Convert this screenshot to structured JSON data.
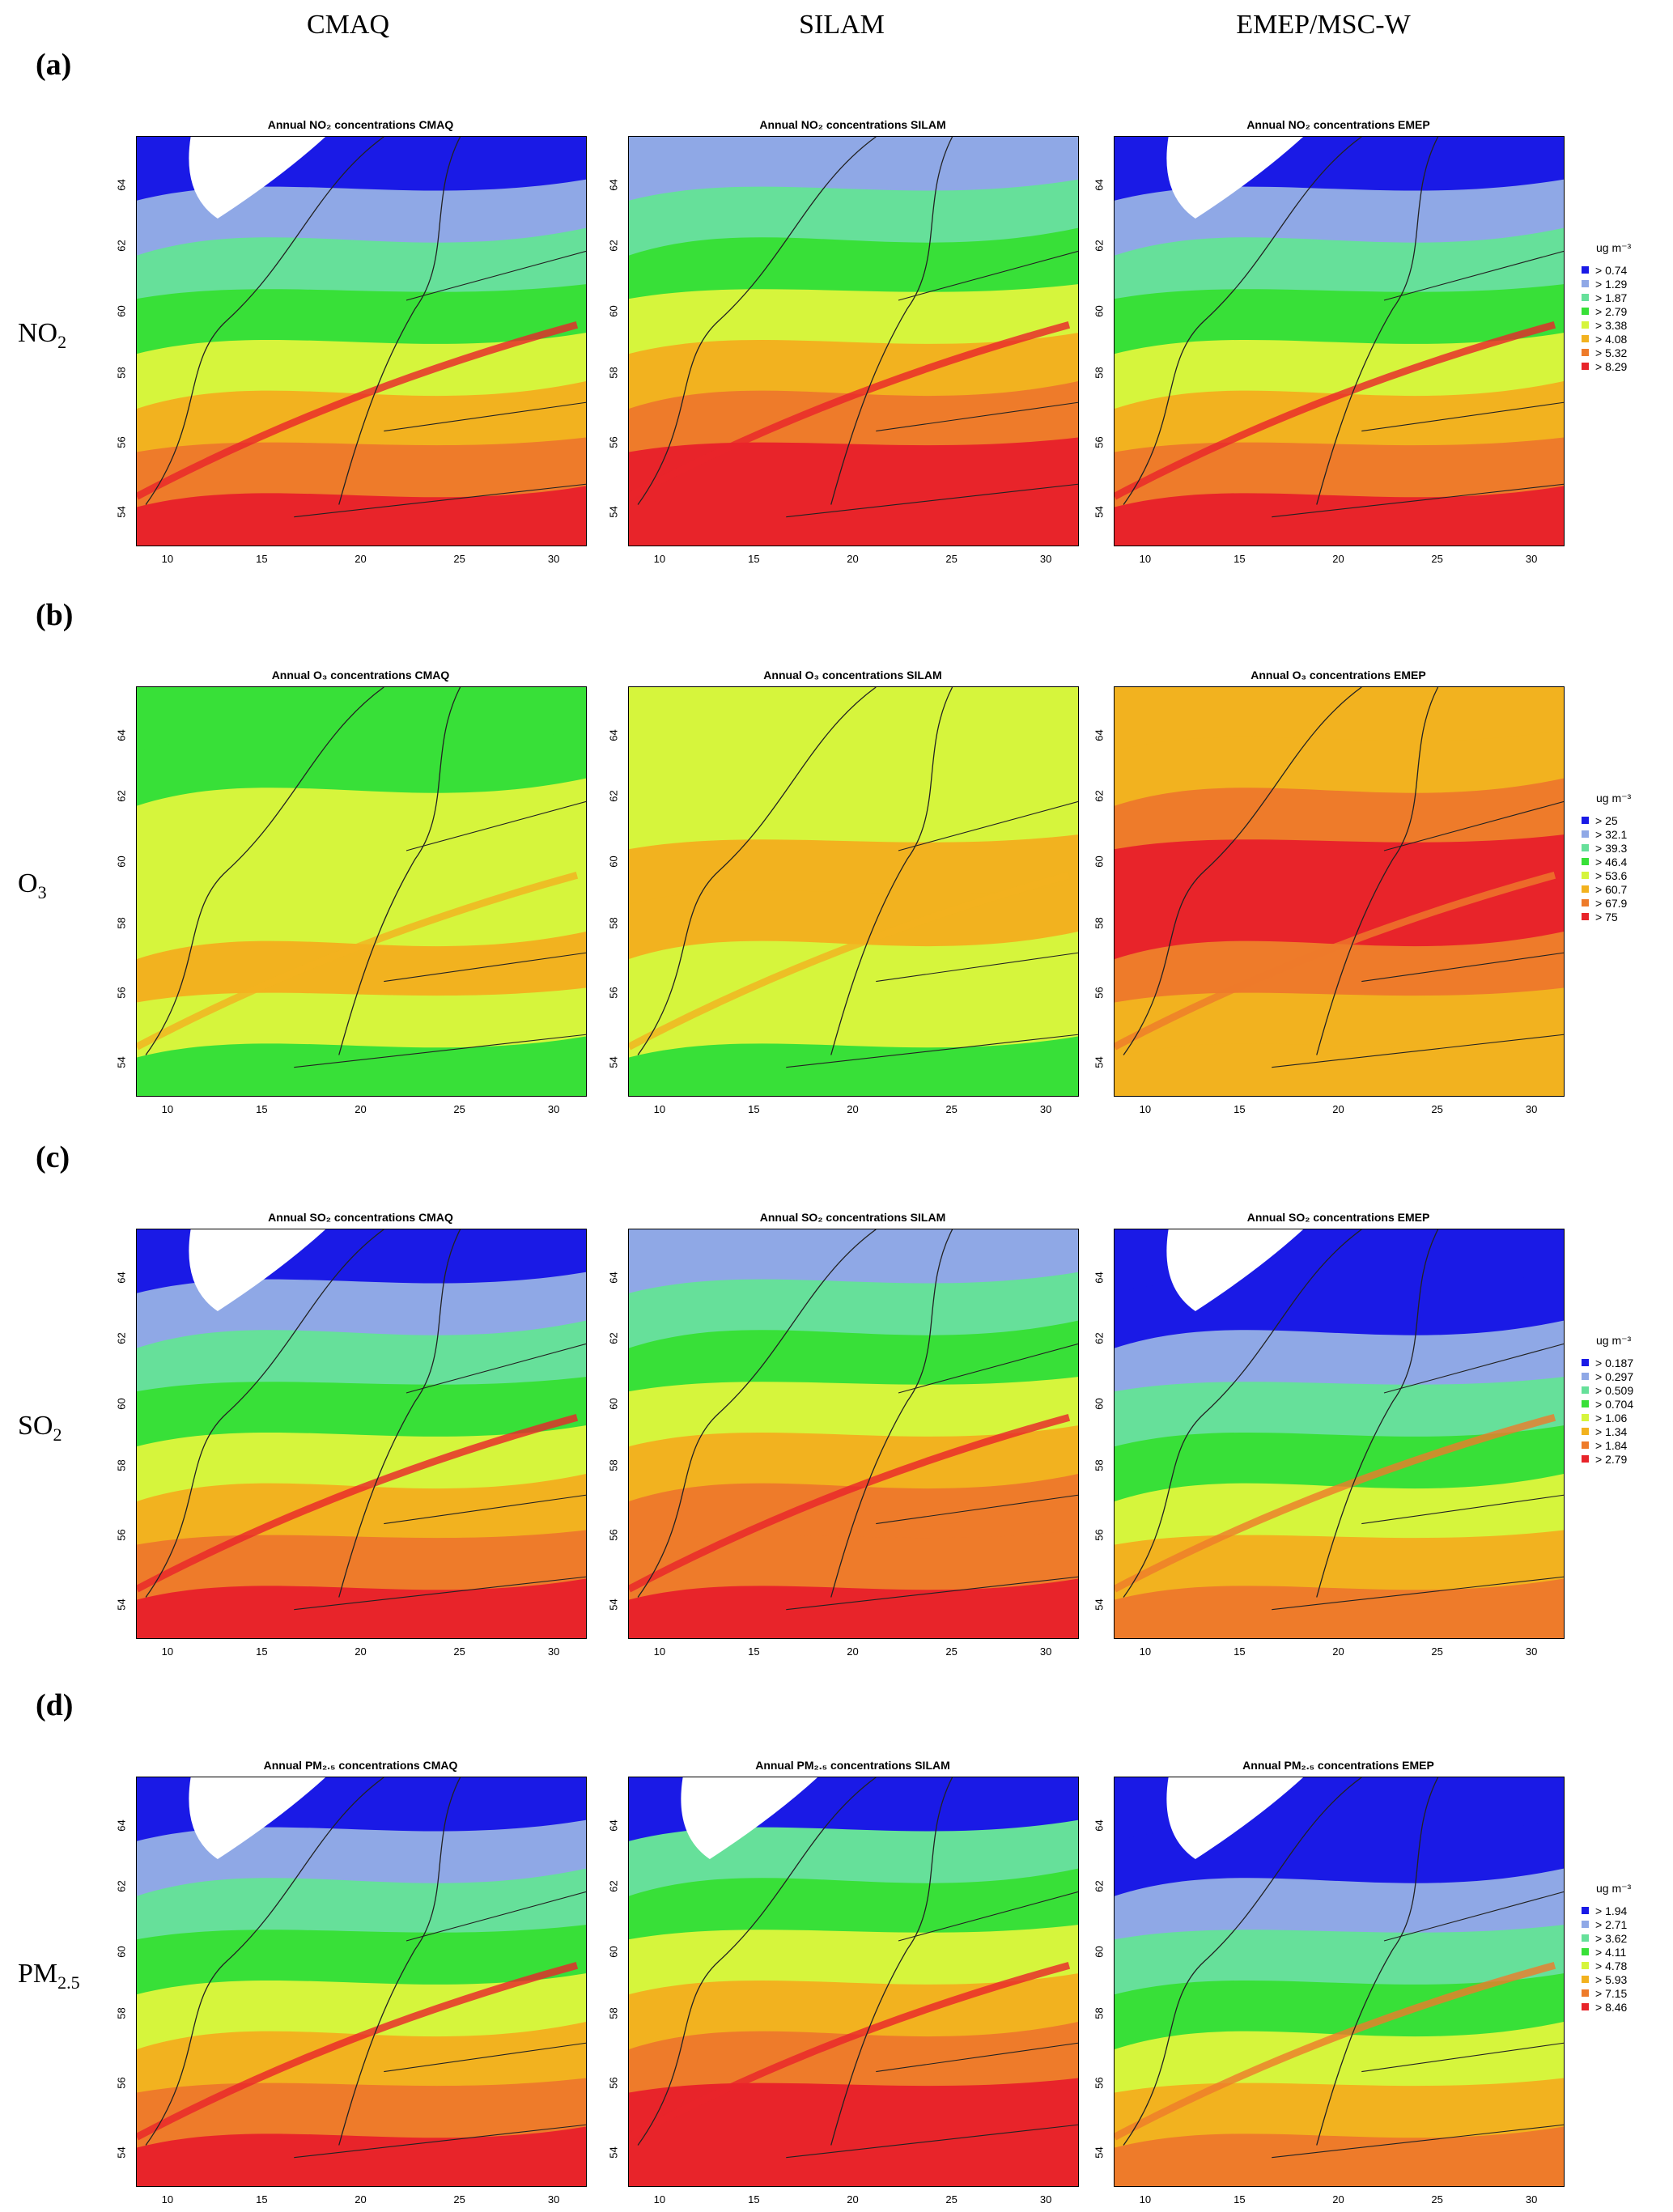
{
  "columns": [
    "CMAQ",
    "SILAM",
    "EMEP/MSC-W"
  ],
  "x_ticks": [
    "10",
    "15",
    "20",
    "25",
    "30"
  ],
  "y_ticks": [
    "54",
    "56",
    "58",
    "60",
    "62",
    "64"
  ],
  "legend_unit": "ug m⁻³",
  "rows": [
    {
      "label": "(a)",
      "pollutant": "NO",
      "pollutant_sub": "2",
      "titles": [
        "Annual NO₂ concentrations CMAQ",
        "Annual NO₂ concentrations SILAM",
        "Annual NO₂ concentrations EMEP"
      ],
      "legend": [
        "> 0.74",
        "> 1.29",
        "> 1.87",
        "> 2.79",
        "> 3.38",
        "> 4.08",
        "> 5.32",
        "> 8.29"
      ]
    },
    {
      "label": "(b)",
      "pollutant": "O",
      "pollutant_sub": "3",
      "titles": [
        "Annual O₃ concentrations CMAQ",
        "Annual O₃ concentrations SILAM",
        "Annual O₃ concentrations EMEP"
      ],
      "legend": [
        "> 25",
        "> 32.1",
        "> 39.3",
        "> 46.4",
        "> 53.6",
        "> 60.7",
        "> 67.9",
        "> 75"
      ]
    },
    {
      "label": "(c)",
      "pollutant": "SO",
      "pollutant_sub": "2",
      "titles": [
        "Annual SO₂ concentrations CMAQ",
        "Annual SO₂ concentrations SILAM",
        "Annual SO₂ concentrations EMEP"
      ],
      "legend": [
        "> 0.187",
        "> 0.297",
        "> 0.509",
        "> 0.704",
        "> 1.06",
        "> 1.34",
        "> 1.84",
        "> 2.79"
      ]
    },
    {
      "label": "(d)",
      "pollutant": "PM",
      "pollutant_sub": "2.5",
      "titles": [
        "Annual PM₂.₅ concentrations CMAQ",
        "Annual PM₂.₅ concentrations SILAM",
        "Annual PM₂.₅ concentrations EMEP"
      ],
      "legend": [
        "> 1.94",
        "> 2.71",
        "> 3.62",
        "> 4.11",
        "> 4.78",
        "> 5.93",
        "> 7.15",
        "> 8.46"
      ]
    }
  ],
  "colors": {
    "scale": [
      "#1a1ae6",
      "#8fa8e6",
      "#66e09a",
      "#38e038",
      "#d6f53c",
      "#f2b21f",
      "#ee7b2a",
      "#e8242a"
    ],
    "land_white": "#ffffff"
  }
}
